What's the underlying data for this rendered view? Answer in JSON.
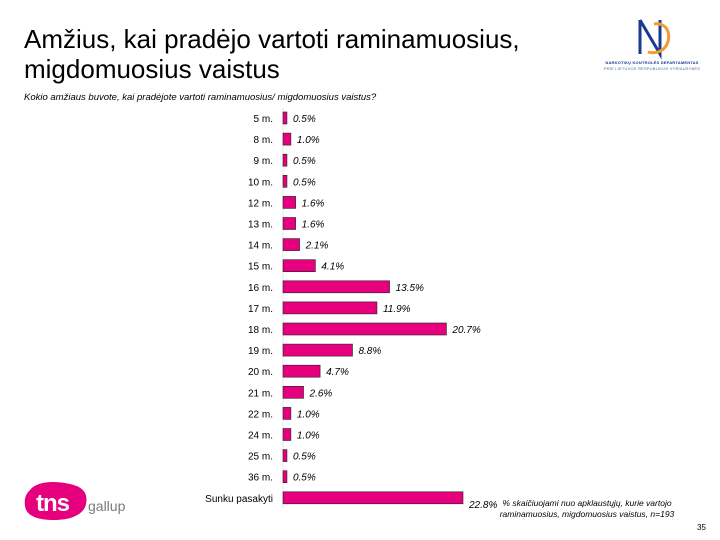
{
  "header": {
    "title_line1": "Amžius, kai pradėjo vartoti raminamuosius,",
    "title_line2": "migdomuosius vaistus",
    "question": "Kokio amžiaus buvote, kai pradėjote vartoti raminamuosius/ migdomuosius vaistus?"
  },
  "logo_nkd": {
    "line1": "NARKOTIKŲ KONTROLĖS DEPARTAMENTAS",
    "line2": "PRIE LIETUVOS RESPUBLIKOS VYRIAUSYBĖS",
    "color": "#1a3a8f",
    "accent": "#f39a33"
  },
  "logo_tns": {
    "tns": "tns",
    "gallup": "gallup",
    "color": "#e6007e"
  },
  "footer": {
    "note_line1": "% skaičiuojami nuo apklaustųjų, kurie vartojo",
    "note_line2": "raminamuosius, migdomuosius vaistus, n=193",
    "page_number": "35"
  },
  "chart_data": {
    "type": "bar",
    "orientation": "horizontal",
    "bar_color": "#e6007e",
    "categories": [
      "5 m.",
      "8 m.",
      "9 m.",
      "10 m.",
      "12 m.",
      "13 m.",
      "14 m.",
      "15 m.",
      "16 m.",
      "17 m.",
      "18 m.",
      "19 m.",
      "20 m.",
      "21 m.",
      "22 m.",
      "24 m.",
      "25 m.",
      "36 m.",
      "Sunku pasakyti"
    ],
    "values": [
      0.5,
      1.0,
      0.5,
      0.5,
      1.6,
      1.6,
      2.1,
      4.1,
      13.5,
      11.9,
      20.7,
      8.8,
      4.7,
      2.6,
      1.0,
      1.0,
      0.5,
      0.5,
      22.8
    ],
    "labels": [
      "0.5%",
      "1.0%",
      "0.5%",
      "0.5%",
      "1.6%",
      "1.6%",
      "2.1%",
      "4.1%",
      "13.5%",
      "11.9%",
      "20.7%",
      "8.8%",
      "4.7%",
      "2.6%",
      "1.0%",
      "1.0%",
      "0.5%",
      "0.5%",
      "22.8%"
    ],
    "unit": "%",
    "xlim": [
      0,
      22.8
    ]
  }
}
